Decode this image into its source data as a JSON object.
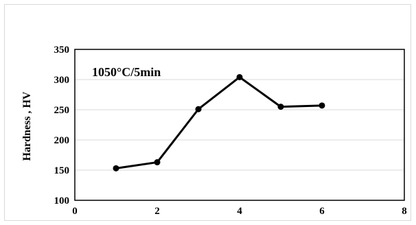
{
  "chart_data": {
    "type": "line",
    "annotation": "1050°C/5min",
    "ylabel": "Hardness , HV",
    "xlabel": "",
    "xlim": [
      0,
      8
    ],
    "ylim": [
      100,
      350
    ],
    "x_ticks": [
      0,
      2,
      4,
      6,
      8
    ],
    "y_ticks": [
      100,
      150,
      200,
      250,
      300,
      350
    ],
    "grid": "horizontal",
    "legend": "none",
    "series": [
      {
        "x": [
          1,
          2,
          3,
          4,
          5,
          6
        ],
        "values": [
          153,
          163,
          251,
          304,
          255,
          257
        ],
        "color": "#000000"
      }
    ]
  }
}
